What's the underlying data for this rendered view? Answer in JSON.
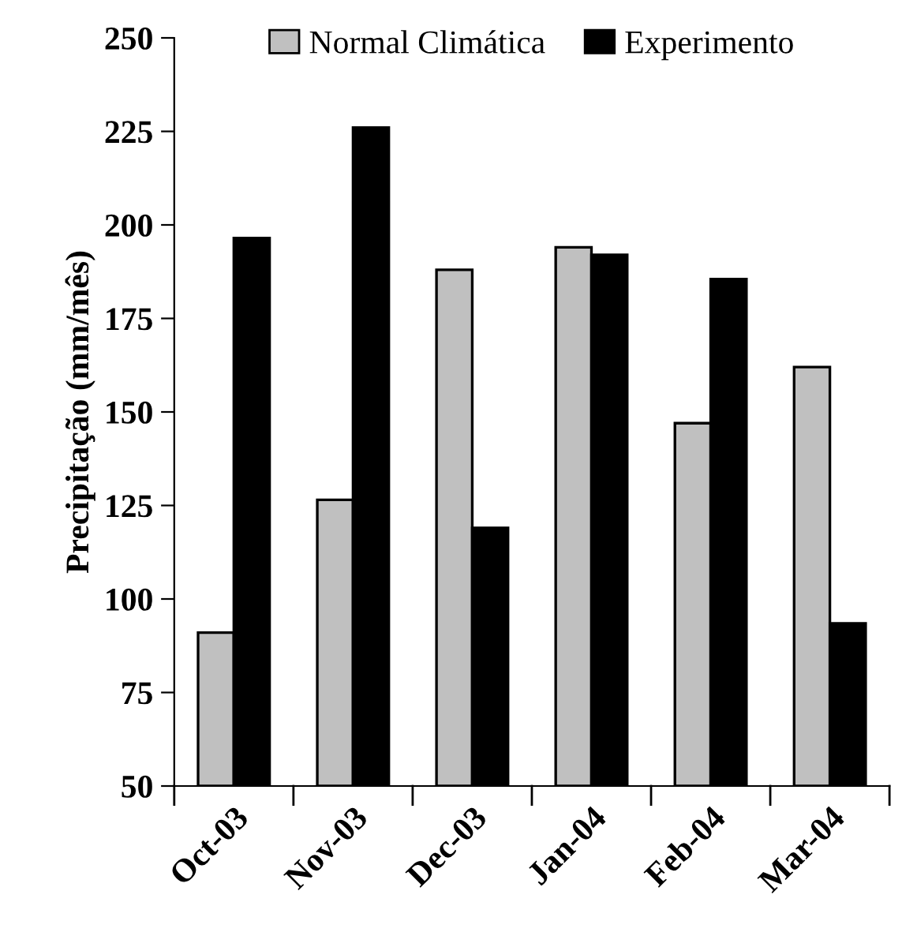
{
  "chart_data": {
    "type": "bar",
    "ylabel": "Precipitação (mm/mês)",
    "categories": [
      "Oct-03",
      "Nov-03",
      "Dec-03",
      "Jan-04",
      "Feb-04",
      "Mar-04"
    ],
    "series": [
      {
        "name": "Normal Climática",
        "color": "#c0c0c0",
        "values": [
          91,
          126.5,
          188,
          194,
          147,
          162
        ]
      },
      {
        "name": "Experimento",
        "color": "#000000",
        "values": [
          196.5,
          226,
          119,
          192,
          185.5,
          93.5
        ]
      }
    ],
    "ylim": [
      50,
      250
    ],
    "yticks": [
      50,
      75,
      100,
      125,
      150,
      175,
      200,
      225,
      250
    ],
    "grid": false,
    "legend": "top"
  }
}
